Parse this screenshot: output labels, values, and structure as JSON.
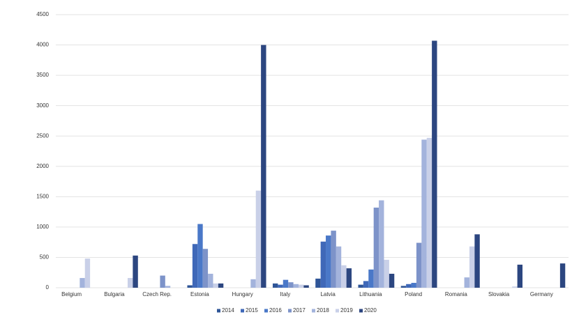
{
  "chart_data": {
    "type": "bar",
    "categories": [
      "Belgium",
      "Bulgaria",
      "Czech Rep.",
      "Estonia",
      "Hungary",
      "Italy",
      "Latvia",
      "Lithuania",
      "Poland",
      "Romania",
      "Slovakia",
      "Germany"
    ],
    "series": [
      {
        "name": "2014",
        "color": "#2f5597",
        "values": [
          0,
          0,
          0,
          40,
          0,
          70,
          150,
          50,
          30,
          0,
          0,
          0
        ]
      },
      {
        "name": "2015",
        "color": "#3f68b8",
        "values": [
          0,
          0,
          0,
          720,
          0,
          50,
          760,
          110,
          60,
          0,
          0,
          0
        ]
      },
      {
        "name": "2016",
        "color": "#4a78c8",
        "values": [
          0,
          0,
          0,
          1050,
          0,
          130,
          860,
          300,
          80,
          0,
          0,
          0
        ]
      },
      {
        "name": "2017",
        "color": "#7d93c9",
        "values": [
          0,
          0,
          200,
          640,
          0,
          90,
          940,
          1320,
          740,
          0,
          0,
          0
        ]
      },
      {
        "name": "2018",
        "color": "#a3b3dc",
        "values": [
          160,
          0,
          30,
          230,
          140,
          60,
          680,
          1440,
          2440,
          170,
          0,
          0
        ]
      },
      {
        "name": "2019",
        "color": "#c9d0e8",
        "values": [
          480,
          160,
          0,
          70,
          1600,
          50,
          370,
          460,
          2470,
          680,
          20,
          0
        ]
      },
      {
        "name": "2020",
        "color": "#2c4680",
        "values": [
          0,
          530,
          0,
          70,
          4000,
          40,
          320,
          230,
          4070,
          880,
          380,
          400
        ]
      }
    ],
    "ylim": [
      0,
      4500
    ],
    "yticks": [
      0,
      500,
      1000,
      1500,
      2000,
      2500,
      3000,
      3500,
      4000,
      4500
    ],
    "grid": true,
    "legend": "bottom"
  }
}
